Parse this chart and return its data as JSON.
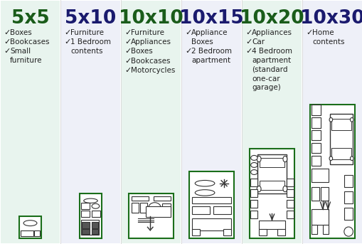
{
  "background_color": "#ffffff",
  "columns": [
    {
      "title": "5x5",
      "title_color": "#1a5c1a",
      "items": [
        "Boxes",
        "Bookcases",
        "Small\nfurniture"
      ]
    },
    {
      "title": "5x10",
      "title_color": "#1a1a6e",
      "items": [
        "Furniture",
        "1 Bedroom\ncontents"
      ]
    },
    {
      "title": "10x10",
      "title_color": "#1a5c1a",
      "items": [
        "Furniture",
        "Appliances",
        "Boxes",
        "Bookcases",
        "Motorcycles"
      ]
    },
    {
      "title": "10x15",
      "title_color": "#1a1a6e",
      "items": [
        "Appliance\nBoxes",
        "2 Bedroom\napartment"
      ]
    },
    {
      "title": "10x20",
      "title_color": "#1a5c1a",
      "items": [
        "Appliances",
        "Car",
        "4 Bedroom\napartment\n(standard\none-car\ngarage)"
      ]
    },
    {
      "title": "10x30",
      "title_color": "#1a1a6e",
      "items": [
        "Home\ncontents"
      ]
    }
  ],
  "col_bg_colors": [
    "#e8f4ee",
    "#eef0f8",
    "#e8f4ee",
    "#eef0f8",
    "#e8f4ee",
    "#eef0f8"
  ],
  "border_color": "#1a6e1a",
  "check_color": "#222222",
  "unit_boxes": [
    {
      "type": "5x5",
      "aspect": 1.0
    },
    {
      "type": "5x10",
      "aspect": 0.55
    },
    {
      "type": "10x10",
      "aspect": 1.0
    },
    {
      "type": "10x15",
      "aspect": 0.72
    },
    {
      "type": "10x20",
      "aspect": 0.54
    },
    {
      "type": "10x30",
      "aspect": 0.36
    }
  ]
}
